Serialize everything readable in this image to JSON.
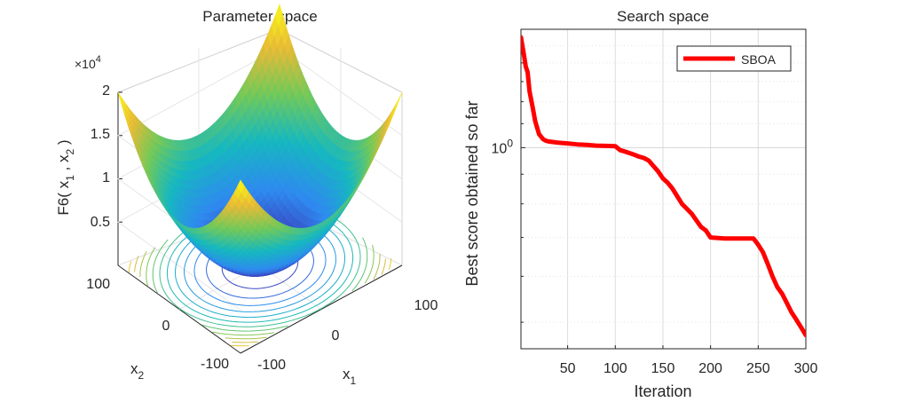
{
  "chart_data": [
    {
      "type": "surface3d",
      "title": "Parameter space",
      "xlabel": "x",
      "xlabel_sub": "1",
      "ylabel": "x",
      "ylabel_sub": "2",
      "zlabel_prefix": "F6( x",
      "zlabel_sub1": "1",
      "zlabel_mid": " , x",
      "zlabel_sub2": "2",
      "zlabel_suffix": " )",
      "x_ticks": [
        "-100",
        "0",
        "100"
      ],
      "y_ticks": [
        "-100",
        "0",
        "100"
      ],
      "z_ticks": [
        "0.5",
        "1",
        "1.5",
        "2"
      ],
      "z_exponent_prefix": "×10",
      "z_exponent_power": "4",
      "xlim": [
        -100,
        100
      ],
      "ylim": [
        -100,
        100
      ],
      "zlim": [
        0,
        20000
      ],
      "function": "sum of squares (x1^2 + x2^2)",
      "colormap": [
        "#3e26a8",
        "#2f89f0",
        "#16b8c0",
        "#72c959",
        "#e8ba37",
        "#f9fb15"
      ]
    },
    {
      "type": "line",
      "title": "Search space",
      "xlabel": "Iteration",
      "ylabel": "Best score obtained so far",
      "y_scale": "log",
      "y_tick_base": "10",
      "y_tick_power": "0",
      "x_ticks": [
        "50",
        "100",
        "150",
        "200",
        "250",
        "300"
      ],
      "xlim": [
        1,
        300
      ],
      "ylim": [
        0.45,
        1.6
      ],
      "grid": true,
      "legend_position": "top-right",
      "series": [
        {
          "name": "SBOA",
          "color": "#ff0000",
          "x": [
            1,
            4,
            6,
            8,
            10,
            13,
            16,
            20,
            24,
            27,
            30,
            40,
            50,
            60,
            70,
            80,
            90,
            100,
            105,
            110,
            118,
            125,
            130,
            135,
            140,
            145,
            150,
            155,
            160,
            170,
            180,
            190,
            195,
            200,
            215,
            230,
            245,
            250,
            255,
            260,
            265,
            270,
            275,
            280,
            285,
            290,
            295,
            300
          ],
          "values": [
            1.55,
            1.45,
            1.38,
            1.35,
            1.25,
            1.18,
            1.11,
            1.055,
            1.035,
            1.028,
            1.025,
            1.02,
            1.017,
            1.013,
            1.011,
            1.008,
            1.007,
            1.006,
            0.99,
            0.985,
            0.975,
            0.965,
            0.96,
            0.95,
            0.93,
            0.91,
            0.885,
            0.87,
            0.85,
            0.8,
            0.77,
            0.73,
            0.72,
            0.7,
            0.697,
            0.697,
            0.697,
            0.68,
            0.66,
            0.63,
            0.6,
            0.575,
            0.56,
            0.54,
            0.52,
            0.505,
            0.49,
            0.475
          ]
        }
      ]
    }
  ]
}
